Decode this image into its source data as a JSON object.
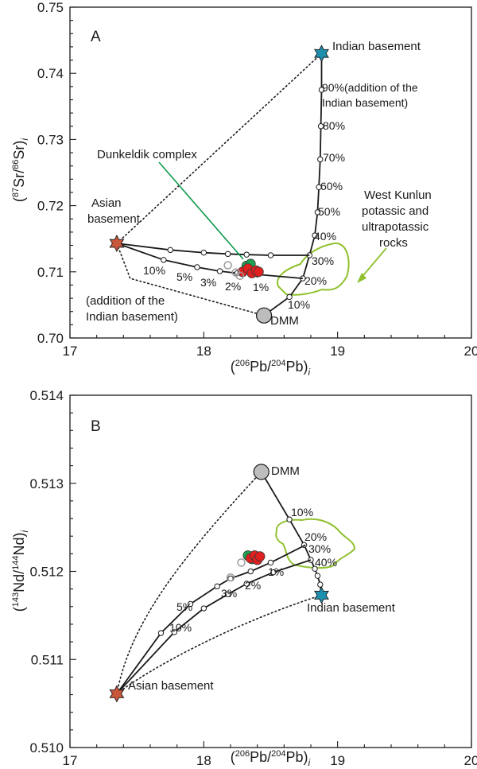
{
  "chart_data": [
    {
      "type": "scatter",
      "panel": "A",
      "xlabel": "(206Pb/204Pb)i",
      "ylabel": "(87Sr/86Sr)i",
      "xlim": [
        17,
        20
      ],
      "ylim": [
        0.7,
        0.75
      ],
      "x_ticks": [
        "17",
        "18",
        "19",
        "20"
      ],
      "y_ticks": [
        "0.70",
        "0.71",
        "0.72",
        "0.73",
        "0.74",
        "0.75"
      ],
      "end_members": [
        {
          "name": "Asian basement",
          "x": 17.35,
          "y": 0.7143,
          "marker": "star",
          "color": "#c8563a"
        },
        {
          "name": "Indian basement",
          "x": 18.88,
          "y": 0.743,
          "marker": "star",
          "color": "#1f8fae"
        },
        {
          "name": "DMM",
          "x": 18.45,
          "y": 0.7034,
          "marker": "circle",
          "color": "#bdbdbd"
        }
      ],
      "mixing_curves": [
        {
          "name": "DMM to Indian basement",
          "x": [
            18.45,
            18.64,
            18.74,
            18.79,
            18.83,
            18.85,
            18.86,
            18.87,
            18.875,
            18.88,
            18.88
          ],
          "y": [
            0.7034,
            0.7062,
            0.709,
            0.7125,
            0.7155,
            0.719,
            0.7228,
            0.727,
            0.732,
            0.7375,
            0.743
          ]
        },
        {
          "name": "Asian basement to mixture 1",
          "x": [
            17.35,
            17.7,
            17.95,
            18.12,
            18.25,
            18.4,
            18.74
          ],
          "y": [
            0.7143,
            0.7118,
            0.7107,
            0.7101,
            0.7098,
            0.7096,
            0.709
          ]
        },
        {
          "name": "Asian basement to mixture 2",
          "x": [
            17.35,
            17.75,
            18.0,
            18.18,
            18.32,
            18.5,
            18.79
          ],
          "y": [
            0.7143,
            0.7133,
            0.7129,
            0.7127,
            0.7126,
            0.7125,
            0.7125
          ]
        }
      ],
      "dotted_envelopes": [
        {
          "x": [
            17.35,
            18.88
          ],
          "y": [
            0.7143,
            0.743
          ]
        },
        {
          "x": [
            17.35,
            17.45,
            18.45
          ],
          "y": [
            0.7143,
            0.709,
            0.7034
          ]
        }
      ],
      "samples": [
        {
          "group": "Dunkeldik complex",
          "color": "#1fa04f",
          "x": [
            18.32,
            18.35
          ],
          "y": [
            0.7109,
            0.7112
          ]
        },
        {
          "group": "Samples",
          "color": "#e0201f",
          "x": [
            18.29,
            18.33,
            18.36,
            18.39,
            18.41
          ],
          "y": [
            0.71,
            0.7105,
            0.7098,
            0.7102,
            0.71
          ]
        },
        {
          "group": "Open symbols",
          "color": "#9a9a9a",
          "x": [
            18.18,
            18.24,
            18.27
          ],
          "y": [
            0.711,
            0.7099,
            0.7094
          ]
        }
      ],
      "labels": [
        "A",
        "Indian basement",
        "90%(addition of the",
        "Indian basement)",
        "80%",
        "70%",
        "60%",
        "50%",
        "40%",
        "30%",
        "20%",
        "10%",
        "Asian",
        "basement",
        "10%",
        "5%",
        "3%",
        "2%",
        "1%",
        "(addition of the",
        "Indian basement)",
        "DMM",
        "Dunkeldik complex",
        "West Kunlun",
        "potassic and",
        "ultrapotassic",
        "rocks"
      ]
    },
    {
      "type": "scatter",
      "panel": "B",
      "xlabel": "(206Pb/204Pb)i",
      "ylabel": "(143Nd/144Nd)i",
      "xlim": [
        17,
        20
      ],
      "ylim": [
        0.51,
        0.514
      ],
      "x_ticks": [
        "17",
        "18",
        "19",
        "20"
      ],
      "y_ticks": [
        "0.510",
        "0.511",
        "0.512",
        "0.513",
        "0.514"
      ],
      "end_members": [
        {
          "name": "Asian basement",
          "x": 17.35,
          "y": 0.51061,
          "marker": "star",
          "color": "#c8563a"
        },
        {
          "name": "Indian basement",
          "x": 18.88,
          "y": 0.51173,
          "marker": "star",
          "color": "#1f8fae"
        },
        {
          "name": "DMM",
          "x": 18.43,
          "y": 0.51313,
          "marker": "circle",
          "color": "#bdbdbd"
        }
      ],
      "mixing_curves": [
        {
          "name": "DMM to Indian basement",
          "x": [
            18.43,
            18.64,
            18.75,
            18.8,
            18.83,
            18.85,
            18.87,
            18.88
          ],
          "y": [
            0.51313,
            0.51259,
            0.5123,
            0.51213,
            0.51203,
            0.51195,
            0.51185,
            0.51173
          ]
        },
        {
          "name": "Asian basement to mixture 1",
          "x": [
            17.35,
            17.68,
            17.9,
            18.1,
            18.2,
            18.35,
            18.5,
            18.76
          ],
          "y": [
            0.51061,
            0.5113,
            0.51163,
            0.51183,
            0.51192,
            0.512,
            0.5121,
            0.5123
          ]
        },
        {
          "name": "Asian basement to mixture 2",
          "x": [
            17.35,
            17.78,
            18.0,
            18.18,
            18.32,
            18.52,
            18.8
          ],
          "y": [
            0.51061,
            0.51131,
            0.51158,
            0.51174,
            0.51186,
            0.51199,
            0.51213
          ]
        }
      ],
      "dotted_envelopes": [
        {
          "x": [
            17.35,
            18.43
          ],
          "y": [
            0.51061,
            0.51313
          ]
        },
        {
          "x": [
            17.35,
            18.88
          ],
          "y": [
            0.51061,
            0.51173
          ]
        }
      ],
      "samples": [
        {
          "group": "Dunkeldik complex",
          "color": "#1fa04f",
          "x": [
            18.33,
            18.36
          ],
          "y": [
            0.51218,
            0.51214
          ]
        },
        {
          "group": "Samples",
          "color": "#e0201f",
          "x": [
            18.35,
            18.38,
            18.4,
            18.42
          ],
          "y": [
            0.51215,
            0.51218,
            0.51213,
            0.51217
          ]
        },
        {
          "group": "Open symbols",
          "color": "#9a9a9a",
          "x": [
            18.2,
            18.28
          ],
          "y": [
            0.51193,
            0.5121
          ]
        }
      ],
      "labels": [
        "B",
        "DMM",
        "10%",
        "20%",
        "30%",
        "40%",
        "Indian basement",
        "1%",
        "2%",
        "3%",
        "5%",
        "10%",
        "Asian basement"
      ]
    }
  ],
  "colors": {
    "asian_star": "#c8563a",
    "indian_star": "#1f8fae",
    "dmm": "#bdbdbd",
    "dunkeldik_green": "#1fa04f",
    "sample_red": "#e0201f",
    "field_outline": "#8fc12f",
    "arrow_green": "#0d9a4a"
  }
}
